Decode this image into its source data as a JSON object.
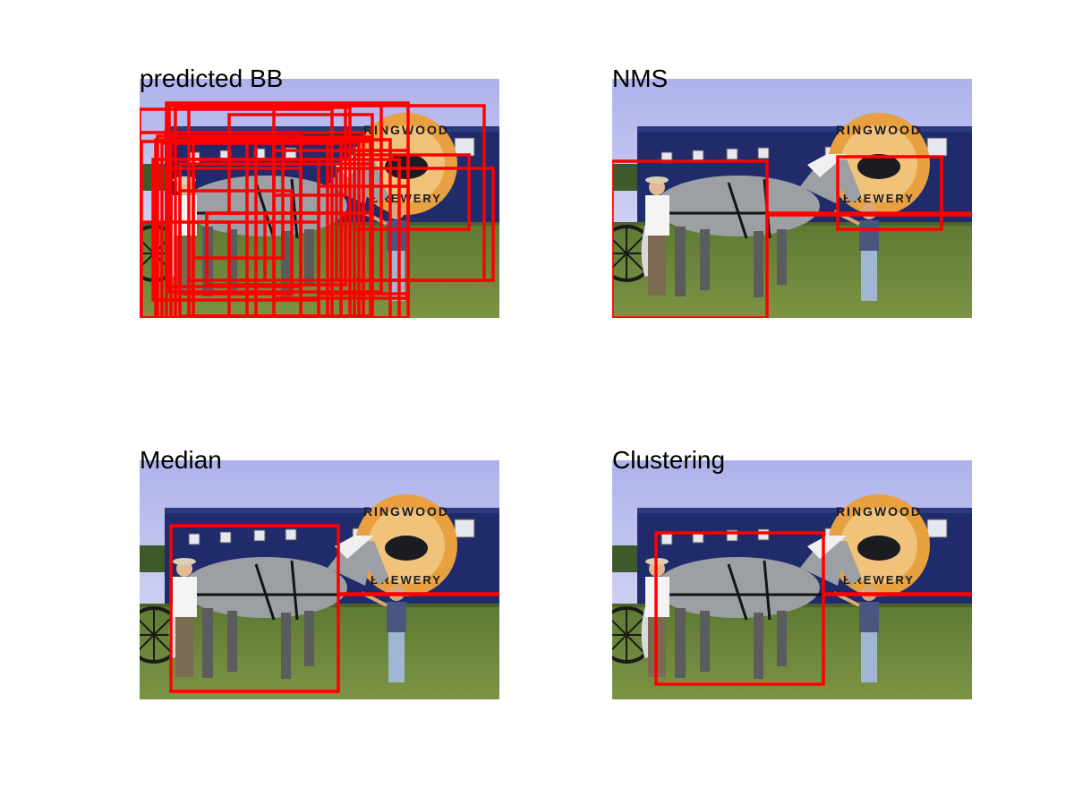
{
  "figure": {
    "panels": [
      {
        "title": "predicted BB"
      },
      {
        "title": "NMS"
      },
      {
        "title": "Median"
      },
      {
        "title": "Clustering"
      }
    ]
  },
  "scene": {
    "trailer_logo_top": "RINGWOOD",
    "trailer_logo_bottom": "BREWERY"
  },
  "colors": {
    "box": "#ff0000",
    "sky": "#c9cbf2",
    "trailer": "#1f2b6b",
    "grass": "#6f8a3c",
    "logo": "#e8a040"
  }
}
